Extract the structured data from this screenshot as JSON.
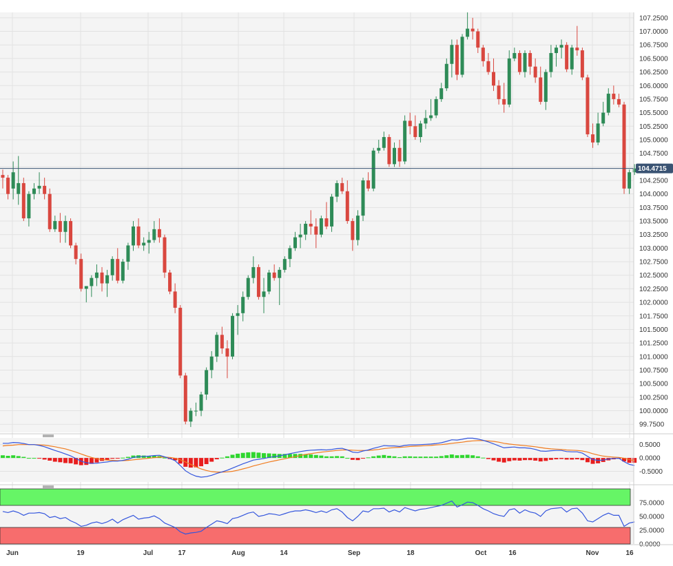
{
  "chart_data": [
    {
      "type": "candlestick",
      "title": "",
      "ylim": [
        99.6,
        107.35
      ],
      "y_ticks": [
        "107.2500",
        "107.0000",
        "106.7500",
        "106.5000",
        "106.2500",
        "106.0000",
        "105.7500",
        "105.5000",
        "105.2500",
        "105.0000",
        "104.7500",
        "104.5000",
        "104.2500",
        "104.0000",
        "103.7500",
        "103.5000",
        "103.2500",
        "103.0000",
        "102.7500",
        "102.5000",
        "102.2500",
        "102.0000",
        "101.7500",
        "101.5000",
        "101.2500",
        "101.0000",
        "100.7500",
        "100.5000",
        "100.2500",
        "100.0000",
        "99.7500"
      ],
      "last_price": "104.4715",
      "last_price_value": 104.4715,
      "grid": true,
      "up_color": "#2e8b57",
      "down_color": "#d9473f",
      "price_line_color": "#3a5373",
      "candles": [
        [
          104.35,
          104.45,
          104.1,
          104.3
        ],
        [
          104.3,
          104.35,
          103.9,
          104.0
        ],
        [
          104.1,
          104.6,
          103.9,
          104.4
        ],
        [
          104.0,
          104.7,
          103.8,
          104.2
        ],
        [
          104.2,
          104.3,
          103.5,
          103.55
        ],
        [
          103.55,
          104.05,
          103.4,
          104.0
        ],
        [
          104.0,
          104.2,
          103.9,
          104.1
        ],
        [
          104.1,
          104.4,
          104.0,
          104.15
        ],
        [
          104.15,
          104.3,
          103.9,
          104.0
        ],
        [
          104.0,
          104.1,
          103.3,
          103.35
        ],
        [
          103.35,
          103.6,
          103.3,
          103.5
        ],
        [
          103.5,
          103.65,
          103.1,
          103.3
        ],
        [
          103.3,
          103.6,
          103.1,
          103.5
        ],
        [
          103.5,
          103.55,
          103.0,
          103.05
        ],
        [
          103.05,
          103.1,
          102.7,
          102.8
        ],
        [
          102.8,
          102.9,
          102.2,
          102.25
        ],
        [
          102.25,
          102.3,
          102.0,
          102.3
        ],
        [
          102.3,
          102.5,
          102.1,
          102.45
        ],
        [
          102.45,
          102.7,
          102.3,
          102.55
        ],
        [
          102.55,
          102.65,
          102.2,
          102.35
        ],
        [
          102.35,
          102.6,
          102.1,
          102.5
        ],
        [
          102.5,
          102.85,
          102.4,
          102.8
        ],
        [
          102.8,
          103.0,
          102.35,
          102.4
        ],
        [
          102.4,
          102.8,
          102.35,
          102.75
        ],
        [
          102.75,
          103.1,
          102.6,
          103.05
        ],
        [
          103.05,
          103.5,
          102.95,
          103.4
        ],
        [
          103.4,
          103.55,
          103.0,
          103.05
        ],
        [
          103.05,
          103.2,
          102.95,
          103.1
        ],
        [
          103.1,
          103.3,
          102.9,
          103.15
        ],
        [
          103.15,
          103.5,
          103.1,
          103.35
        ],
        [
          103.35,
          103.55,
          103.1,
          103.2
        ],
        [
          103.2,
          103.25,
          102.45,
          102.55
        ],
        [
          102.55,
          102.6,
          102.15,
          102.2
        ],
        [
          102.2,
          102.35,
          101.8,
          101.9
        ],
        [
          101.9,
          101.95,
          100.6,
          100.65
        ],
        [
          100.65,
          100.7,
          99.75,
          99.8
        ],
        [
          99.8,
          100.05,
          99.7,
          100.0
        ],
        [
          100.0,
          100.15,
          99.9,
          100.0
        ],
        [
          100.0,
          100.35,
          99.9,
          100.3
        ],
        [
          100.3,
          100.8,
          100.2,
          100.75
        ],
        [
          100.75,
          101.1,
          100.6,
          101.0
        ],
        [
          101.0,
          101.45,
          100.9,
          101.4
        ],
        [
          101.4,
          101.55,
          101.05,
          101.15
        ],
        [
          101.15,
          101.3,
          100.6,
          101.0
        ],
        [
          101.0,
          101.8,
          100.95,
          101.75
        ],
        [
          101.75,
          101.95,
          101.4,
          101.8
        ],
        [
          101.8,
          102.2,
          101.65,
          102.1
        ],
        [
          102.1,
          102.5,
          102.05,
          102.45
        ],
        [
          102.45,
          102.85,
          102.35,
          102.65
        ],
        [
          102.65,
          102.7,
          102.05,
          102.1
        ],
        [
          102.1,
          102.45,
          101.8,
          102.2
        ],
        [
          102.2,
          102.6,
          102.15,
          102.55
        ],
        [
          102.55,
          102.7,
          102.4,
          102.45
        ],
        [
          102.45,
          102.65,
          101.95,
          102.6
        ],
        [
          102.6,
          102.85,
          102.55,
          102.8
        ],
        [
          102.8,
          103.05,
          102.65,
          103.0
        ],
        [
          103.0,
          103.3,
          102.95,
          103.2
        ],
        [
          103.2,
          103.45,
          103.0,
          103.25
        ],
        [
          103.25,
          103.5,
          103.15,
          103.45
        ],
        [
          103.45,
          103.7,
          103.25,
          103.4
        ],
        [
          103.4,
          103.55,
          103.0,
          103.25
        ],
        [
          103.25,
          103.6,
          103.2,
          103.55
        ],
        [
          103.55,
          103.85,
          103.35,
          103.4
        ],
        [
          103.4,
          104.0,
          103.3,
          103.95
        ],
        [
          103.95,
          104.25,
          103.85,
          104.2
        ],
        [
          104.2,
          104.3,
          104.0,
          104.05
        ],
        [
          104.05,
          104.25,
          103.45,
          103.5
        ],
        [
          103.5,
          103.55,
          102.95,
          103.15
        ],
        [
          103.15,
          103.7,
          103.05,
          103.6
        ],
        [
          103.6,
          104.3,
          103.5,
          104.25
        ],
        [
          104.25,
          104.4,
          104.05,
          104.1
        ],
        [
          104.1,
          104.85,
          104.05,
          104.8
        ],
        [
          104.8,
          105.0,
          104.75,
          104.85
        ],
        [
          104.85,
          105.15,
          104.8,
          105.05
        ],
        [
          105.05,
          105.1,
          104.5,
          104.55
        ],
        [
          104.55,
          104.95,
          104.5,
          104.85
        ],
        [
          104.85,
          105.0,
          104.5,
          104.6
        ],
        [
          104.6,
          105.45,
          104.55,
          105.35
        ],
        [
          105.35,
          105.5,
          105.1,
          105.25
        ],
        [
          105.25,
          105.45,
          105.0,
          105.05
        ],
        [
          105.05,
          105.35,
          104.95,
          105.3
        ],
        [
          105.3,
          105.55,
          105.2,
          105.4
        ],
        [
          105.4,
          105.75,
          105.35,
          105.45
        ],
        [
          105.45,
          105.8,
          105.4,
          105.75
        ],
        [
          105.75,
          106.05,
          105.7,
          105.95
        ],
        [
          105.95,
          106.5,
          105.9,
          106.4
        ],
        [
          106.4,
          106.85,
          106.15,
          106.75
        ],
        [
          106.75,
          106.85,
          106.1,
          106.2
        ],
        [
          106.2,
          106.95,
          106.15,
          106.9
        ],
        [
          106.9,
          107.35,
          106.85,
          107.05
        ],
        [
          107.05,
          107.25,
          106.85,
          107.0
        ],
        [
          107.0,
          107.05,
          106.6,
          106.7
        ],
        [
          106.7,
          106.75,
          106.35,
          106.45
        ],
        [
          106.45,
          106.6,
          106.2,
          106.25
        ],
        [
          106.25,
          106.5,
          105.9,
          106.0
        ],
        [
          106.0,
          106.1,
          105.65,
          105.75
        ],
        [
          105.75,
          106.05,
          105.5,
          105.65
        ],
        [
          105.65,
          106.65,
          105.6,
          106.5
        ],
        [
          106.5,
          106.7,
          106.45,
          106.6
        ],
        [
          106.6,
          106.65,
          106.2,
          106.25
        ],
        [
          106.25,
          106.65,
          106.15,
          106.6
        ],
        [
          106.6,
          106.65,
          106.2,
          106.35
        ],
        [
          106.35,
          106.5,
          106.05,
          106.15
        ],
        [
          106.15,
          106.35,
          105.65,
          105.7
        ],
        [
          105.7,
          106.3,
          105.55,
          106.25
        ],
        [
          106.25,
          106.75,
          106.15,
          106.6
        ],
        [
          106.6,
          106.75,
          106.35,
          106.7
        ],
        [
          106.7,
          106.85,
          106.5,
          106.75
        ],
        [
          106.75,
          106.8,
          106.25,
          106.3
        ],
        [
          106.3,
          106.75,
          106.2,
          106.7
        ],
        [
          106.7,
          107.1,
          106.55,
          106.65
        ],
        [
          106.65,
          106.7,
          106.1,
          106.15
        ],
        [
          106.15,
          106.2,
          105.05,
          105.1
        ],
        [
          105.1,
          105.3,
          104.85,
          104.95
        ],
        [
          104.95,
          105.5,
          104.9,
          105.3
        ],
        [
          105.3,
          105.7,
          105.25,
          105.5
        ],
        [
          105.5,
          105.95,
          105.45,
          105.85
        ],
        [
          105.85,
          106.0,
          105.65,
          105.75
        ],
        [
          105.75,
          105.85,
          105.6,
          105.65
        ],
        [
          105.65,
          105.7,
          104.0,
          104.1
        ],
        [
          104.1,
          104.45,
          104.0,
          104.4
        ],
        [
          104.4,
          104.55,
          104.35,
          104.47
        ]
      ]
    },
    {
      "type": "macd",
      "y_ticks": [
        "0.5000",
        "0.0000",
        "-0.5000"
      ],
      "ylim": [
        -0.9,
        0.75
      ],
      "positive_color": "#2fd62f",
      "negative_color": "#e81e1e",
      "macd_color": "#3355dd",
      "signal_color": "#f07b1e",
      "macd": [
        0.55,
        0.55,
        0.58,
        0.57,
        0.54,
        0.5,
        0.5,
        0.47,
        0.42,
        0.35,
        0.28,
        0.22,
        0.15,
        0.08,
        -0.02,
        -0.12,
        -0.18,
        -0.2,
        -0.2,
        -0.17,
        -0.15,
        -0.12,
        -0.12,
        -0.09,
        -0.05,
        0.02,
        0.05,
        0.06,
        0.07,
        0.09,
        0.1,
        0.04,
        -0.02,
        -0.1,
        -0.28,
        -0.48,
        -0.6,
        -0.68,
        -0.72,
        -0.7,
        -0.65,
        -0.58,
        -0.52,
        -0.46,
        -0.38,
        -0.3,
        -0.22,
        -0.15,
        -0.08,
        -0.05,
        -0.02,
        0.02,
        0.05,
        0.08,
        0.12,
        0.16,
        0.2,
        0.24,
        0.27,
        0.29,
        0.3,
        0.31,
        0.3,
        0.32,
        0.35,
        0.36,
        0.3,
        0.22,
        0.2,
        0.26,
        0.3,
        0.36,
        0.41,
        0.46,
        0.45,
        0.45,
        0.43,
        0.47,
        0.49,
        0.49,
        0.5,
        0.51,
        0.52,
        0.54,
        0.57,
        0.62,
        0.68,
        0.67,
        0.7,
        0.74,
        0.74,
        0.71,
        0.66,
        0.6,
        0.53,
        0.45,
        0.38,
        0.4,
        0.41,
        0.38,
        0.38,
        0.36,
        0.32,
        0.26,
        0.25,
        0.27,
        0.28,
        0.28,
        0.24,
        0.23,
        0.23,
        0.18,
        0.06,
        -0.06,
        -0.09,
        -0.08,
        -0.04,
        -0.02,
        -0.01,
        -0.14,
        -0.24,
        -0.28
      ],
      "signal": [
        0.45,
        0.47,
        0.48,
        0.5,
        0.5,
        0.5,
        0.5,
        0.49,
        0.48,
        0.45,
        0.42,
        0.38,
        0.34,
        0.28,
        0.22,
        0.15,
        0.08,
        0.02,
        -0.03,
        -0.06,
        -0.08,
        -0.09,
        -0.1,
        -0.1,
        -0.09,
        -0.07,
        -0.05,
        -0.03,
        -0.01,
        0.01,
        0.03,
        0.03,
        0.02,
        -0.01,
        -0.07,
        -0.15,
        -0.24,
        -0.33,
        -0.41,
        -0.47,
        -0.51,
        -0.53,
        -0.53,
        -0.52,
        -0.5,
        -0.46,
        -0.41,
        -0.36,
        -0.3,
        -0.25,
        -0.2,
        -0.15,
        -0.11,
        -0.07,
        -0.03,
        0.01,
        0.05,
        0.09,
        0.13,
        0.16,
        0.19,
        0.22,
        0.24,
        0.26,
        0.28,
        0.3,
        0.3,
        0.29,
        0.28,
        0.28,
        0.28,
        0.3,
        0.32,
        0.35,
        0.37,
        0.39,
        0.4,
        0.41,
        0.43,
        0.44,
        0.45,
        0.46,
        0.47,
        0.49,
        0.5,
        0.52,
        0.55,
        0.57,
        0.59,
        0.62,
        0.64,
        0.65,
        0.65,
        0.64,
        0.62,
        0.59,
        0.55,
        0.52,
        0.5,
        0.48,
        0.46,
        0.44,
        0.42,
        0.39,
        0.36,
        0.34,
        0.33,
        0.32,
        0.3,
        0.29,
        0.28,
        0.26,
        0.22,
        0.16,
        0.11,
        0.07,
        0.05,
        0.03,
        0.02,
        -0.01,
        -0.06,
        -0.1
      ]
    },
    {
      "type": "line",
      "y_ticks": [
        "75.0000",
        "50.0000",
        "25.0000",
        "0.0000"
      ],
      "ylim": [
        0,
        100
      ],
      "overbought": 70,
      "oversold": 30,
      "overbought_color": "#66f566",
      "oversold_color": "#f76d6d",
      "line_color": "#3355dd",
      "series": [
        {
          "values": [
            59,
            57,
            60,
            57,
            52,
            56,
            56,
            57,
            55,
            48,
            50,
            46,
            48,
            42,
            38,
            32,
            34,
            38,
            40,
            37,
            40,
            45,
            38,
            44,
            48,
            52,
            45,
            47,
            48,
            51,
            46,
            38,
            34,
            30,
            22,
            18,
            20,
            21,
            23,
            30,
            36,
            42,
            40,
            37,
            46,
            48,
            52,
            56,
            58,
            50,
            52,
            55,
            54,
            52,
            55,
            58,
            60,
            60,
            62,
            60,
            57,
            60,
            57,
            62,
            64,
            58,
            48,
            42,
            50,
            60,
            58,
            64,
            64,
            65,
            58,
            62,
            58,
            66,
            63,
            60,
            63,
            64,
            66,
            68,
            70,
            74,
            78,
            67,
            71,
            76,
            75,
            70,
            64,
            60,
            55,
            52,
            50,
            62,
            64,
            56,
            62,
            58,
            56,
            50,
            60,
            64,
            65,
            66,
            58,
            64,
            65,
            56,
            42,
            40,
            46,
            52,
            56,
            52,
            52,
            32,
            38,
            40
          ]
        }
      ]
    }
  ],
  "x_ticks": [
    "Jun",
    "19",
    "Jul",
    "17",
    "Aug",
    "14",
    "Sep",
    "18",
    "Oct",
    "16",
    "Nov",
    "16"
  ]
}
